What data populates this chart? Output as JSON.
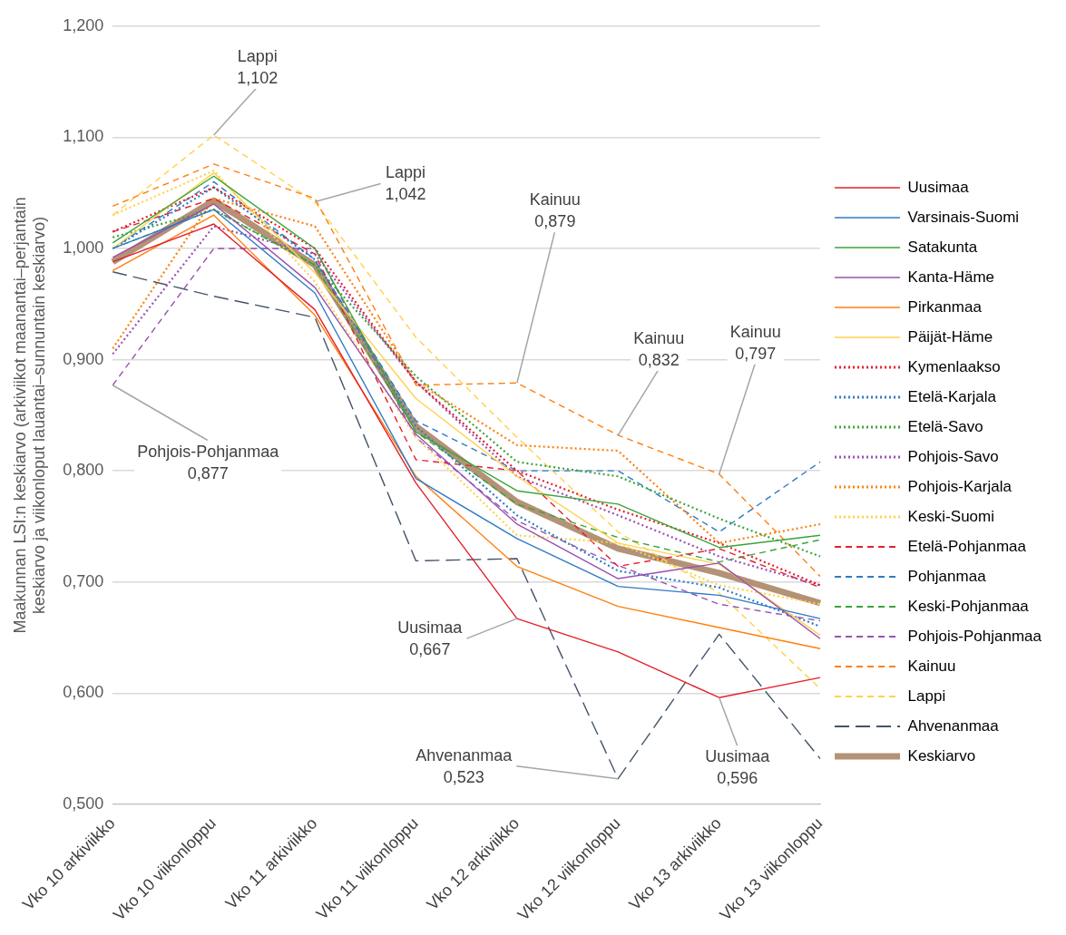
{
  "chart_data": {
    "type": "line",
    "ylabel": "Maakunnan LSI:n keskiarvo (arkiviikot maanantai–perjantain keskiarvo ja viikonloput lauantai–sunnuntain keskiarvo)",
    "categories": [
      "Vko 10 arkiviikko",
      "Vko 10 viikonloppu",
      "Vko 11 arkiviikko",
      "Vko 11 viikonloppu",
      "Vko 12 arkiviikko",
      "Vko 12 viikonloppu",
      "Vko 13 arkiviikko",
      "Vko 13 viikonloppu"
    ],
    "ylim": [
      0.5,
      1.2
    ],
    "yticks": [
      {
        "value": 0.5,
        "label": "0,500"
      },
      {
        "value": 0.6,
        "label": "0,600"
      },
      {
        "value": 0.7,
        "label": "0,700"
      },
      {
        "value": 0.8,
        "label": "0,800"
      },
      {
        "value": 0.9,
        "label": "0,900"
      },
      {
        "value": 1.0,
        "label": "1,000"
      },
      {
        "value": 1.1,
        "label": "1,100"
      },
      {
        "value": 1.2,
        "label": "1,200"
      }
    ],
    "grid": "y",
    "legend": "right",
    "marker": "none",
    "series": [
      {
        "name": "Uusimaa",
        "color": "#e4202a",
        "line_style": "solid",
        "values": [
          0.988,
          1.022,
          0.945,
          0.789,
          0.667,
          0.637,
          0.596,
          0.614
        ]
      },
      {
        "name": "Varsinais-Suomi",
        "color": "#2e7bc4",
        "line_style": "solid",
        "values": [
          1.0,
          1.035,
          0.96,
          0.793,
          0.739,
          0.696,
          0.688,
          0.667
        ]
      },
      {
        "name": "Satakunta",
        "color": "#3aa43a",
        "line_style": "solid",
        "values": [
          1.005,
          1.065,
          1.0,
          0.835,
          0.782,
          0.77,
          0.731,
          0.742
        ]
      },
      {
        "name": "Kanta-Häme",
        "color": "#9b4fb0",
        "line_style": "solid",
        "values": [
          0.992,
          1.04,
          0.965,
          0.833,
          0.752,
          0.703,
          0.717,
          0.649
        ]
      },
      {
        "name": "Pirkanmaa",
        "color": "#ff7f0e",
        "line_style": "solid",
        "values": [
          0.98,
          1.03,
          0.94,
          0.795,
          0.714,
          0.678,
          0.659,
          0.64
        ]
      },
      {
        "name": "Päijät-Häme",
        "color": "#ffd24d",
        "line_style": "solid",
        "values": [
          1.0,
          1.068,
          0.978,
          0.865,
          0.795,
          0.735,
          0.716,
          0.652
        ]
      },
      {
        "name": "Kymenlaakso",
        "color": "#e4202a",
        "line_style": "dotted",
        "values": [
          1.015,
          1.055,
          1.0,
          0.88,
          0.8,
          0.765,
          0.735,
          0.697
        ]
      },
      {
        "name": "Etelä-Karjala",
        "color": "#2e7bc4",
        "line_style": "dotted",
        "values": [
          1.0,
          1.055,
          0.99,
          0.84,
          0.76,
          0.71,
          0.695,
          0.66
        ]
      },
      {
        "name": "Etelä-Savo",
        "color": "#3aa43a",
        "line_style": "dotted",
        "values": [
          1.01,
          1.035,
          0.985,
          0.885,
          0.808,
          0.795,
          0.757,
          0.723
        ]
      },
      {
        "name": "Pohjois-Savo",
        "color": "#9b4fb0",
        "line_style": "dotted",
        "values": [
          0.905,
          1.02,
          0.995,
          0.88,
          0.795,
          0.76,
          0.723,
          0.697
        ]
      },
      {
        "name": "Pohjois-Karjala",
        "color": "#ff7f0e",
        "line_style": "dotted",
        "values": [
          0.91,
          1.045,
          1.02,
          0.88,
          0.823,
          0.818,
          0.735,
          0.752
        ]
      },
      {
        "name": "Keski-Suomi",
        "color": "#ffd24d",
        "line_style": "dotted",
        "values": [
          1.03,
          1.07,
          0.97,
          0.83,
          0.742,
          0.735,
          0.697,
          0.68
        ]
      },
      {
        "name": "Etelä-Pohjanmaa",
        "color": "#e4202a",
        "line_style": "dashed",
        "values": [
          1.015,
          1.045,
          0.995,
          0.81,
          0.8,
          0.714,
          0.73,
          0.695
        ]
      },
      {
        "name": "Pohjanmaa",
        "color": "#2e7bc4",
        "line_style": "dashed",
        "values": [
          1.0,
          1.06,
          0.99,
          0.845,
          0.8,
          0.8,
          0.745,
          0.808
        ]
      },
      {
        "name": "Keski-Pohjanmaa",
        "color": "#3aa43a",
        "line_style": "dashed",
        "values": [
          1.0,
          1.035,
          0.985,
          0.835,
          0.77,
          0.74,
          0.718,
          0.738
        ]
      },
      {
        "name": "Pohjois-Pohjanmaa",
        "color": "#9b4fb0",
        "line_style": "dashed",
        "values": [
          0.877,
          1.0,
          1.0,
          0.83,
          0.755,
          0.715,
          0.68,
          0.665
        ]
      },
      {
        "name": "Kainuu",
        "color": "#ff7f0e",
        "line_style": "dashed",
        "values": [
          1.038,
          1.076,
          1.045,
          0.877,
          0.879,
          0.832,
          0.797,
          0.705
        ]
      },
      {
        "name": "Lappi",
        "color": "#ffd24d",
        "line_style": "dashed",
        "values": [
          1.03,
          1.102,
          1.042,
          0.92,
          0.83,
          0.745,
          0.69,
          0.604
        ]
      },
      {
        "name": "Ahvenanmaa",
        "color": "#44546a",
        "line_style": "longdash",
        "values": [
          0.979,
          0.957,
          0.938,
          0.719,
          0.721,
          0.523,
          0.653,
          0.541
        ]
      },
      {
        "name": "Keskiarvo",
        "color": "#b39276",
        "line_style": "solid",
        "values": [
          0.988,
          1.043,
          0.985,
          0.84,
          0.772,
          0.73,
          0.708,
          0.681
        ]
      }
    ],
    "annotations": [
      {
        "text": "Lappi 1,102",
        "x": "Vko 10 viikonloppu",
        "y": 1.102
      },
      {
        "text": "Lappi 1,042",
        "x": "Vko 11 arkiviikko",
        "y": 1.042
      },
      {
        "text": "Kainuu 0,879",
        "x": "Vko 12 arkiviikko",
        "y": 0.879
      },
      {
        "text": "Kainuu 0,832",
        "x": "Vko 12 viikonloppu",
        "y": 0.832
      },
      {
        "text": "Kainuu 0,797",
        "x": "Vko 13 arkiviikko",
        "y": 0.797
      },
      {
        "text": "Pohjois-Pohjanmaa 0,877",
        "x": "Vko 10 arkiviikko",
        "y": 0.877
      },
      {
        "text": "Uusimaa 0,667",
        "x": "Vko 12 arkiviikko",
        "y": 0.667
      },
      {
        "text": "Ahvenanmaa 0,523",
        "x": "Vko 12 viikonloppu",
        "y": 0.523
      },
      {
        "text": "Uusimaa 0,596",
        "x": "Vko 13 arkiviikko",
        "y": 0.596
      }
    ]
  }
}
